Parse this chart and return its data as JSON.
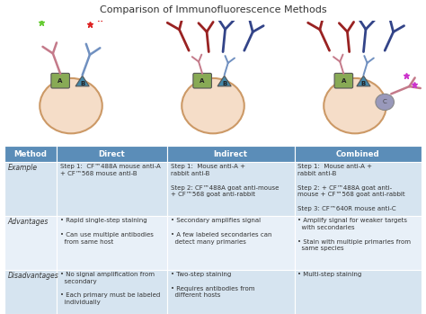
{
  "title": "Comparison of Immunofluorescence Methods",
  "title_fontsize": 8,
  "header_bg": "#5b8db8",
  "header_text_color": "#ffffff",
  "row_bg_a": "#d6e4f0",
  "row_bg_b": "#e8f0f8",
  "col_headers": [
    "Method",
    "Direct",
    "Indirect",
    "Combined"
  ],
  "rows": [
    {
      "label": "Example",
      "direct": "Step 1:  CF™488A mouse anti-A\n+ CF™568 mouse anti-B",
      "indirect": "Step 1:  Mouse anti-A +\nrabbit anti-B\n\nStep 2: CF™488A goat anti-mouse\n+ CF™568 goat anti-rabbit",
      "combined": "Step 1:  Mouse anti-A +\nrabbit anti-B\n\nStep 2: + CF™488A goat anti-\nmouse + CF™568 goat anti-rabbit\n\nStep 3: CF™640R mouse anti-C"
    },
    {
      "label": "Advantages",
      "direct": "• Rapid single-step staining\n\n• Can use multiple antibodies\n  from same host",
      "indirect": "• Secondary amplifies signal\n\n• A few labeled secondaries can\n  detect many primaries",
      "combined": "• Amplify signal for weaker targets\n  with secondaries\n\n• Stain with multiple primaries from\n  same species"
    },
    {
      "label": "Disadvantages",
      "direct": "• No signal amplification from\n  secondary\n\n• Each primary must be labeled\n  individually",
      "indirect": "• Two-step staining\n\n• Requires antibodies from\n  different hosts",
      "combined": "• Multi-step staining"
    }
  ],
  "colors": {
    "green_star": "#66cc33",
    "red_star": "#dd2222",
    "pink_star": "#cc33cc",
    "primary_a": "#c47a8a",
    "primary_b": "#7090c0",
    "secondary_mouse": "#992222",
    "secondary_rabbit": "#334488",
    "target_a": "#88aa55",
    "target_b": "#4488aa",
    "target_c": "#9999bb",
    "cell_fill": "#f5ddc8",
    "cell_edge": "#cc9966"
  }
}
